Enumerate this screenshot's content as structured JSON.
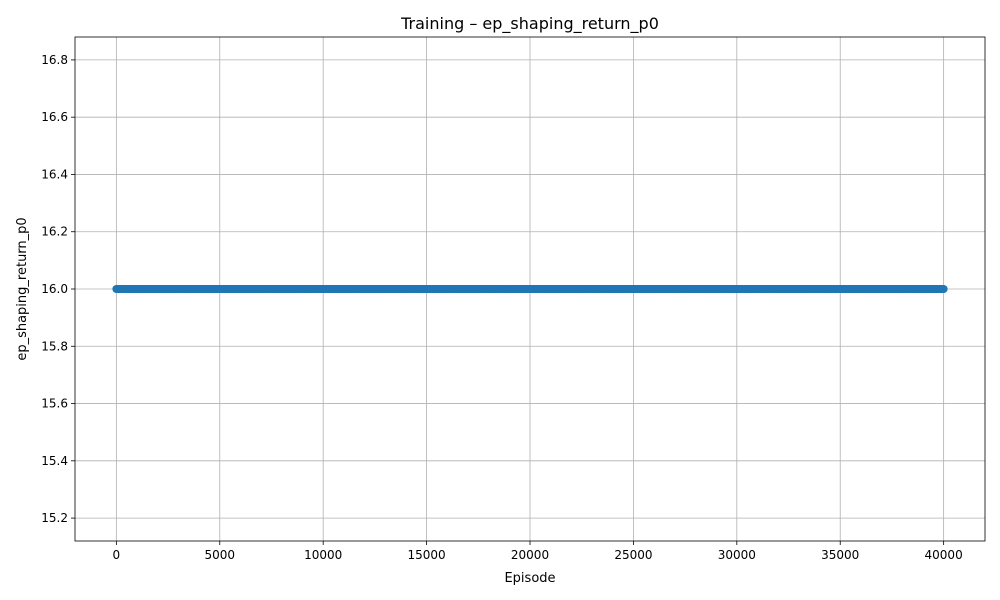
{
  "chart_data": {
    "type": "line",
    "title": "Training – ep_shaping_return_p0",
    "xlabel": "Episode",
    "ylabel": "ep_shaping_return_p0",
    "xlim": [
      -2000,
      42000
    ],
    "ylim": [
      15.12,
      16.88
    ],
    "xticks": [
      0,
      5000,
      10000,
      15000,
      20000,
      25000,
      30000,
      35000,
      40000
    ],
    "yticks": [
      15.2,
      15.4,
      15.6,
      15.8,
      16.0,
      16.2,
      16.4,
      16.6,
      16.8
    ],
    "grid": true,
    "markers": true,
    "series": [
      {
        "color": "#1f77b4",
        "x_start": 0,
        "x_end": 40000,
        "x_step": 50,
        "constant_value": 16.0
      }
    ]
  }
}
